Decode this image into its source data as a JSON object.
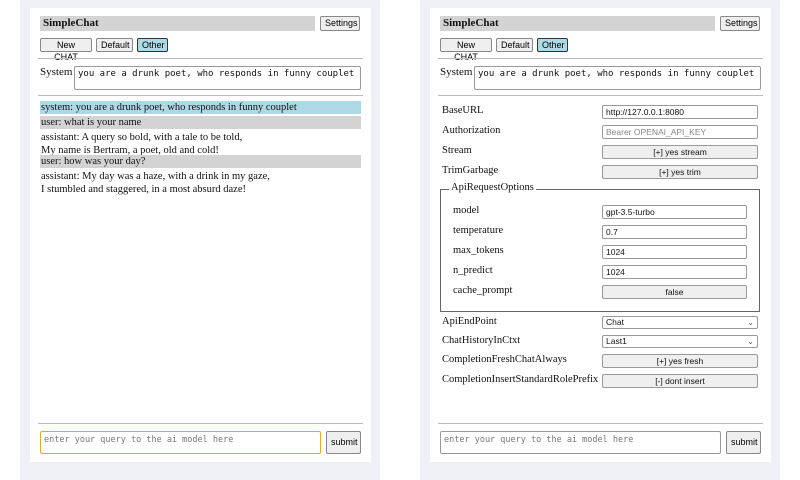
{
  "left": {
    "title": "SimpleChat",
    "settings": "Settings",
    "buttons": [
      "New CHAT",
      "Default",
      "Other"
    ],
    "system_label": "System",
    "system_value": "you are a drunk poet, who responds in funny couplet",
    "messages": [
      {
        "role": "system",
        "lines": [
          "system: you are a drunk poet, who responds in funny couplet"
        ]
      },
      {
        "role": "user",
        "lines": [
          "user: what is your name"
        ]
      },
      {
        "role": "assistant",
        "lines": [
          "assistant: A query so bold, with a tale to be told,",
          "My name is Bertram, a poet, old and cold!"
        ]
      },
      {
        "role": "user",
        "lines": [
          "user: how was your day?"
        ]
      },
      {
        "role": "assistant",
        "lines": [
          "assistant: My day was a haze, with a drink in my gaze,",
          "I stumbled and staggered, in a most absurd daze!"
        ]
      }
    ],
    "query_placeholder": "enter your query to the ai model here",
    "submit": "submit"
  },
  "right": {
    "title": "SimpleChat",
    "settings": "Settings",
    "buttons": [
      "New CHAT",
      "Default",
      "Other"
    ],
    "system_label": "System",
    "system_value": "you are a drunk poet, who responds in funny couplet",
    "settings_rows": {
      "baseurl": {
        "label": "BaseURL",
        "value": "http://127.0.0.1:8080"
      },
      "authorization": {
        "label": "Authorization",
        "placeholder": "Bearer OPENAI_API_KEY"
      },
      "stream": {
        "label": "Stream",
        "value": "[+] yes stream"
      },
      "trimgarbage": {
        "label": "TrimGarbage",
        "value": "[+] yes trim"
      }
    },
    "api_options": {
      "legend": "ApiRequestOptions",
      "model": {
        "label": "model",
        "value": "gpt-3.5-turbo"
      },
      "temperature": {
        "label": "temperature",
        "value": "0.7"
      },
      "max_tokens": {
        "label": "max_tokens",
        "value": "1024"
      },
      "n_predict": {
        "label": "n_predict",
        "value": "1024"
      },
      "cache_prompt": {
        "label": "cache_prompt",
        "value": "false"
      }
    },
    "apiendpoint": {
      "label": "ApiEndPoint",
      "value": "Chat"
    },
    "chathistory": {
      "label": "ChatHistoryInCtxt",
      "value": "Last1"
    },
    "freshchat": {
      "label": "CompletionFreshChatAlways",
      "value": "[+] yes fresh"
    },
    "insertprefix": {
      "label": "CompletionInsertStandardRolePrefix",
      "value": "[-] dont insert"
    },
    "query_placeholder": "enter your query to the ai model here",
    "submit": "submit"
  },
  "colors": {
    "selected_button": "#add8e6",
    "system_msg": "#add8e6",
    "user_msg": "#d3d3d3",
    "focus_border": "#e0a83a"
  }
}
